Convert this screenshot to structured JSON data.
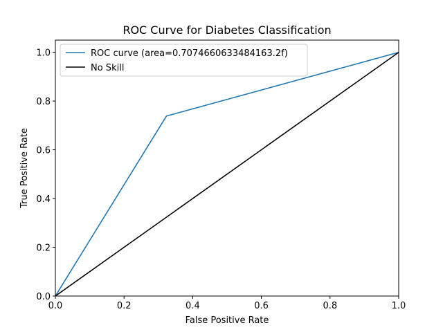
{
  "chart_data": {
    "type": "line",
    "title": "ROC Curve for Diabetes Classification",
    "xlabel": "False Positive Rate",
    "ylabel": "True Positive Rate",
    "xlim": [
      0.0,
      1.0
    ],
    "ylim": [
      0.0,
      1.05
    ],
    "xticks": [
      "0.0",
      "0.2",
      "0.4",
      "0.6",
      "0.8",
      "1.0"
    ],
    "yticks": [
      "0.0",
      "0.2",
      "0.4",
      "0.6",
      "0.8",
      "1.0"
    ],
    "grid": false,
    "legend_position": "top-left",
    "series": [
      {
        "name": "ROC curve (area=0.7074660633484163.2f)",
        "color": "#1f77b4",
        "x": [
          0.0,
          0.3235,
          1.0
        ],
        "y": [
          0.0,
          0.7385,
          1.0
        ]
      },
      {
        "name": "No Skill",
        "color": "#000000",
        "x": [
          0.0,
          1.0
        ],
        "y": [
          0.0,
          1.0
        ]
      }
    ]
  }
}
